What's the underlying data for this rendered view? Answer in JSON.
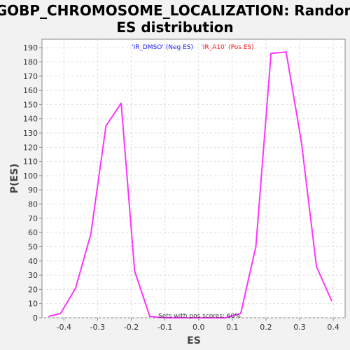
{
  "chart_data": {
    "type": "line",
    "title_line1": "GOBP_CHROMOSOME_LOCALIZATION: Random",
    "title_line2": "ES distribution",
    "xlabel": "ES",
    "ylabel": "P(ES)",
    "xlim": [
      -0.465,
      0.435
    ],
    "ylim": [
      0,
      196
    ],
    "x_ticks": [
      -0.4,
      -0.3,
      -0.2,
      -0.1,
      0.0,
      0.1,
      0.2,
      0.3,
      0.4
    ],
    "x_tick_labels": [
      "-0.4",
      "-0.3",
      "-0.2",
      "-0.1",
      "0.0",
      "0.1",
      "0.2",
      "0.3",
      "0.4"
    ],
    "y_ticks": [
      0,
      10,
      20,
      30,
      40,
      50,
      60,
      70,
      80,
      90,
      100,
      110,
      120,
      130,
      140,
      150,
      160,
      170,
      180,
      190
    ],
    "y_tick_labels": [
      "0",
      "10",
      "20",
      "30",
      "40",
      "50",
      "60",
      "70",
      "80",
      "90",
      "100",
      "110",
      "120",
      "130",
      "140",
      "150",
      "160",
      "170",
      "180",
      "190"
    ],
    "grid": true,
    "legend": [
      {
        "label": "'IR_DMSO' (Neg ES)",
        "color": "#1a1aff"
      },
      {
        "label": "'IR_A10' (Pos ES)",
        "color": "#ff1a1a"
      }
    ],
    "legend_placement": "top-center",
    "annotation": "Sets with pos scores: 60%",
    "series": [
      {
        "color": "#ff33ff",
        "x": [
          -0.445,
          -0.41,
          -0.365,
          -0.32,
          -0.275,
          -0.23,
          -0.19,
          -0.145,
          -0.1,
          -0.055,
          -0.01,
          0.035,
          0.08,
          0.125,
          0.17,
          0.215,
          0.26,
          0.305,
          0.35,
          0.395
        ],
        "y": [
          1,
          3,
          21,
          59,
          135,
          151,
          33,
          1,
          0,
          0,
          0,
          0,
          0,
          3,
          50,
          186,
          187,
          124,
          36,
          12
        ]
      }
    ]
  }
}
